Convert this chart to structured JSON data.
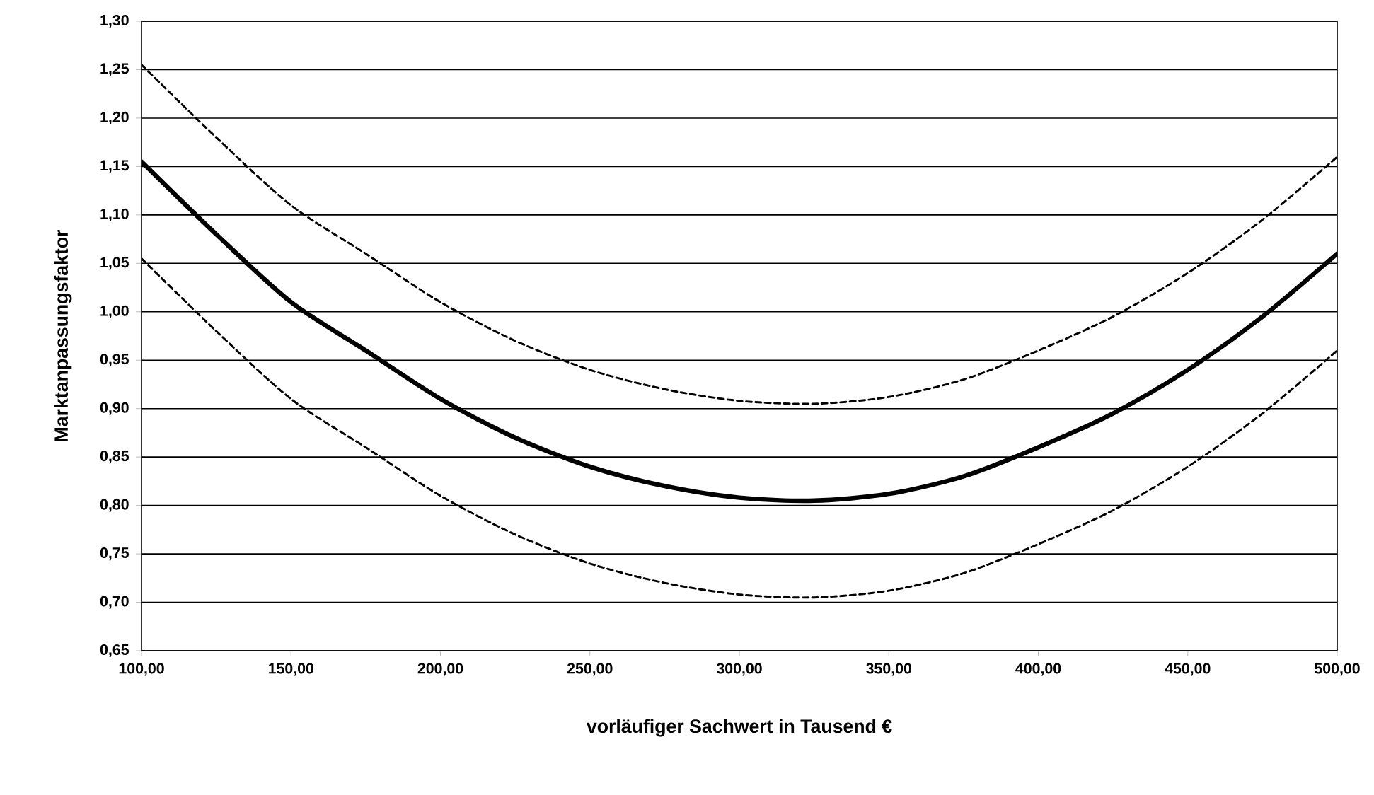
{
  "chart_data": {
    "type": "line",
    "xlabel": "vorläufiger Sachwert in Tausend €",
    "ylabel": "Marktanpassungsfaktor",
    "x": [
      100,
      125,
      150,
      175,
      200,
      225,
      250,
      275,
      300,
      325,
      350,
      375,
      400,
      425,
      450,
      475,
      500
    ],
    "series": [
      {
        "color": "#000000",
        "line_style": "dashed",
        "values": [
          1.255,
          1.18,
          1.11,
          1.06,
          1.01,
          0.97,
          0.94,
          0.92,
          0.908,
          0.905,
          0.912,
          0.93,
          0.96,
          0.995,
          1.04,
          1.095,
          1.16
        ]
      },
      {
        "color": "#000000",
        "line_style": "solid",
        "values": [
          1.155,
          1.08,
          1.01,
          0.96,
          0.91,
          0.87,
          0.84,
          0.82,
          0.808,
          0.805,
          0.812,
          0.83,
          0.86,
          0.895,
          0.94,
          0.995,
          1.06
        ]
      },
      {
        "color": "#000000",
        "line_style": "dashed",
        "values": [
          1.055,
          0.98,
          0.91,
          0.86,
          0.81,
          0.77,
          0.74,
          0.72,
          0.708,
          0.705,
          0.712,
          0.73,
          0.76,
          0.795,
          0.84,
          0.895,
          0.96
        ]
      }
    ],
    "xlim": [
      100,
      500
    ],
    "ylim": [
      0.65,
      1.3
    ],
    "xticks": [
      {
        "value": 100,
        "label": "100,00"
      },
      {
        "value": 150,
        "label": "150,00"
      },
      {
        "value": 200,
        "label": "200,00"
      },
      {
        "value": 250,
        "label": "250,00"
      },
      {
        "value": 300,
        "label": "300,00"
      },
      {
        "value": 350,
        "label": "350,00"
      },
      {
        "value": 400,
        "label": "400,00"
      },
      {
        "value": 450,
        "label": "450,00"
      },
      {
        "value": 500,
        "label": "500,00"
      }
    ],
    "yticks": [
      {
        "value": 0.65,
        "label": "0,65"
      },
      {
        "value": 0.7,
        "label": "0,70"
      },
      {
        "value": 0.75,
        "label": "0,75"
      },
      {
        "value": 0.8,
        "label": "0,80"
      },
      {
        "value": 0.85,
        "label": "0,85"
      },
      {
        "value": 0.9,
        "label": "0,90"
      },
      {
        "value": 0.95,
        "label": "0,95"
      },
      {
        "value": 1.0,
        "label": "1,00"
      },
      {
        "value": 1.05,
        "label": "1,05"
      },
      {
        "value": 1.1,
        "label": "1,10"
      },
      {
        "value": 1.15,
        "label": "1,15"
      },
      {
        "value": 1.2,
        "label": "1,20"
      },
      {
        "value": 1.25,
        "label": "1,25"
      },
      {
        "value": 1.3,
        "label": "1,30"
      }
    ],
    "grid": "y"
  }
}
